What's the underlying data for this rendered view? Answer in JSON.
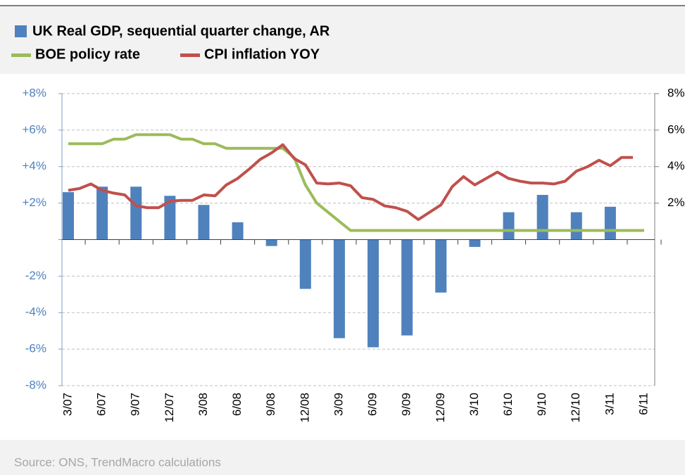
{
  "chart_data": {
    "type": "bar",
    "source": "Source: ONS, TrendMacro calculations",
    "categories": [
      "3/07",
      null,
      null,
      "6/07",
      null,
      null,
      "9/07",
      null,
      null,
      "12/07",
      null,
      null,
      "3/08",
      null,
      null,
      "6/08",
      null,
      null,
      "9/08",
      null,
      null,
      "12/08",
      null,
      null,
      "3/09",
      null,
      null,
      "6/09",
      null,
      null,
      "9/09",
      null,
      null,
      "12/09",
      null,
      null,
      "3/10",
      null,
      null,
      "6/10",
      null,
      null,
      "9/10",
      null,
      null,
      "12/10",
      null,
      null,
      "3/11",
      null,
      null,
      "6/11"
    ],
    "series": [
      {
        "name": "UK Real GDP, sequential quarter change, AR",
        "type": "bar",
        "color": "#4f81bd",
        "values": [
          2.6,
          null,
          null,
          2.9,
          null,
          null,
          2.9,
          null,
          null,
          2.4,
          null,
          null,
          1.9,
          null,
          null,
          0.95,
          null,
          null,
          -0.35,
          null,
          null,
          -2.7,
          null,
          null,
          -5.4,
          null,
          null,
          -5.9,
          null,
          null,
          -5.25,
          null,
          null,
          -2.9,
          null,
          null,
          -0.4,
          null,
          null,
          1.5,
          null,
          null,
          2.45,
          null,
          null,
          1.5,
          null,
          null,
          1.8,
          null,
          null,
          null
        ]
      },
      {
        "name": "BOE policy rate",
        "type": "line",
        "axis": "y2",
        "color": "#9bbb59",
        "values": [
          5.25,
          5.25,
          5.25,
          5.25,
          5.5,
          5.5,
          5.75,
          5.75,
          5.75,
          5.75,
          5.5,
          5.5,
          5.25,
          5.25,
          5.0,
          5.0,
          5.0,
          5.0,
          5.0,
          5.0,
          4.5,
          3.0,
          2.0,
          1.5,
          1.0,
          0.5,
          0.5,
          0.5,
          0.5,
          0.5,
          0.5,
          0.5,
          0.5,
          0.5,
          0.5,
          0.5,
          0.5,
          0.5,
          0.5,
          0.5,
          0.5,
          0.5,
          0.5,
          0.5,
          0.5,
          0.5,
          0.5,
          0.5,
          0.5,
          0.5,
          0.5,
          0.5
        ]
      },
      {
        "name": "CPI inflation YOY",
        "type": "line",
        "axis": "y2",
        "color": "#c0504d",
        "values": [
          2.7,
          2.8,
          3.05,
          2.7,
          2.55,
          2.45,
          1.85,
          1.75,
          1.75,
          2.1,
          2.15,
          2.15,
          2.45,
          2.4,
          3.0,
          3.35,
          3.85,
          4.4,
          4.75,
          5.2,
          4.45,
          4.1,
          3.1,
          3.05,
          3.1,
          2.95,
          2.3,
          2.2,
          1.85,
          1.75,
          1.55,
          1.1,
          1.5,
          1.9,
          2.9,
          3.45,
          3.0,
          3.35,
          3.7,
          3.35,
          3.2,
          3.1,
          3.1,
          3.05,
          3.2,
          3.75,
          4.0,
          4.35,
          4.05,
          4.5,
          4.5,
          null
        ]
      }
    ],
    "ylim": [
      -8,
      8
    ],
    "yticks": [
      {
        "value": -8,
        "label": "-8%"
      },
      {
        "value": -6,
        "label": "-6%"
      },
      {
        "value": -4,
        "label": "-4%"
      },
      {
        "value": -2,
        "label": "-2%"
      },
      0,
      {
        "value": 2,
        "label": "+2%"
      },
      {
        "value": 4,
        "label": "+4%"
      },
      {
        "value": 6,
        "label": "+6%"
      },
      {
        "value": 8,
        "label": "+8%"
      }
    ],
    "y2lim": [
      -8,
      8
    ],
    "y2ticks": [
      {
        "value": 2,
        "label": "2%"
      },
      {
        "value": 4,
        "label": "4%"
      },
      {
        "value": 6,
        "label": "6%"
      },
      {
        "value": 8,
        "label": "8%"
      }
    ],
    "grid": true
  }
}
